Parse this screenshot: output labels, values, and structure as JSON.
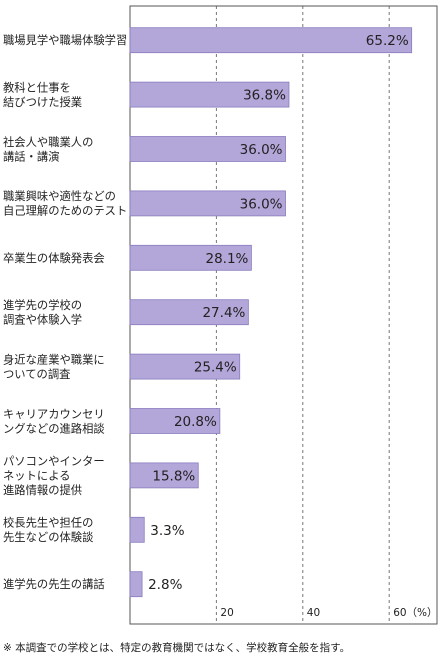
{
  "chart_data": {
    "type": "bar",
    "orientation": "horizontal",
    "categories": [
      [
        "職場見学や職場体験学習"
      ],
      [
        "教科と仕事を",
        "結びつけた授業"
      ],
      [
        "社会人や職業人の",
        "講話・講演"
      ],
      [
        "職業興味や適性などの",
        "自己理解のためのテスト"
      ],
      [
        "卒業生の体験発表会"
      ],
      [
        "進学先の学校の",
        "調査や体験入学"
      ],
      [
        "身近な産業や職業に",
        "ついての調査"
      ],
      [
        "キャリアカウンセリ",
        "ングなどの進路相談"
      ],
      [
        "パソコンやインター",
        "ネットによる",
        "進路情報の提供"
      ],
      [
        "校長先生や担任の",
        "先生などの体験談"
      ],
      [
        "進学先の先生の講話"
      ]
    ],
    "values": [
      65.2,
      36.8,
      36.0,
      36.0,
      28.1,
      27.4,
      25.4,
      20.8,
      15.8,
      3.3,
      2.8
    ],
    "value_labels": [
      "65.2%",
      "36.8%",
      "36.0%",
      "36.0%",
      "28.1%",
      "27.4%",
      "25.4%",
      "20.8%",
      "15.8%",
      "3.3%",
      "2.8%"
    ],
    "x_ticks": [
      {
        "value": 20,
        "label": "20"
      },
      {
        "value": 40,
        "label": "40"
      },
      {
        "value": 60,
        "label": "60（%）"
      }
    ],
    "xlim": [
      0,
      70
    ],
    "grid": "dashed vertical at 20, 40, 60",
    "bar_color": "#b3a6d9",
    "bar_border_color": "#8a7cbf",
    "frame_color": "#555555"
  },
  "footnote": "※ 本調査での学校とは、特定の教育機関ではなく、学校教育全般を指す。"
}
